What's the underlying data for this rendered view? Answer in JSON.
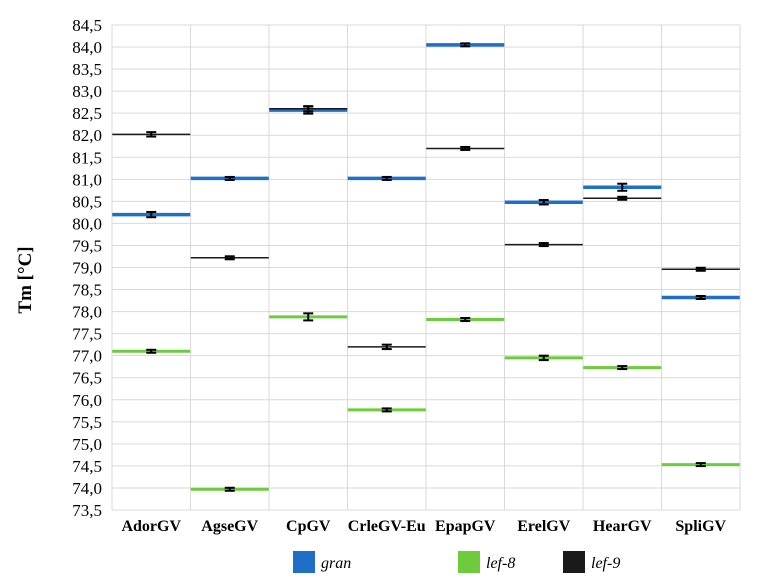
{
  "chart_data": {
    "type": "scatter",
    "ylabel": "Tm [°C]",
    "ylim": [
      73.5,
      84.5
    ],
    "yticks": [
      "84,5",
      "84,0",
      "83,5",
      "83,0",
      "82,5",
      "82,0",
      "81,5",
      "81,0",
      "80,5",
      "80,0",
      "79,5",
      "79,0",
      "78,5",
      "78,0",
      "77,5",
      "77,0",
      "76,5",
      "76,0",
      "75,5",
      "75,0",
      "74,5",
      "74,0",
      "73,5"
    ],
    "categories": [
      "AdorGV",
      "AgseGV",
      "CpGV",
      "CrleGV-Eu",
      "EpapGV",
      "ErelGV",
      "HearGV",
      "SpliGV"
    ],
    "grid": true,
    "legend_position": "bottom",
    "series": [
      {
        "name": "gran",
        "color": "#1f6fc6",
        "values": [
          80.2,
          81.02,
          82.57,
          81.02,
          84.05,
          80.48,
          80.82,
          78.32
        ],
        "errors": [
          0.06,
          0.0,
          0.08,
          0.03,
          0.0,
          0.05,
          0.08,
          0.03
        ]
      },
      {
        "name": "lef-8",
        "color": "#6dcc3c",
        "values": [
          77.1,
          73.97,
          77.88,
          75.77,
          77.82,
          76.95,
          76.73,
          74.53
        ],
        "errors": [
          0.02,
          0.03,
          0.08,
          0.02,
          0.01,
          0.05,
          0.03,
          0.03
        ]
      },
      {
        "name": "lef-9",
        "color": "#1a1a1a",
        "values": [
          82.02,
          79.22,
          82.6,
          77.2,
          81.7,
          79.52,
          80.57,
          78.96
        ],
        "errors": [
          0.05,
          0.02,
          0.06,
          0.05,
          0.02,
          0.02,
          0.03,
          0.01
        ]
      }
    ]
  }
}
